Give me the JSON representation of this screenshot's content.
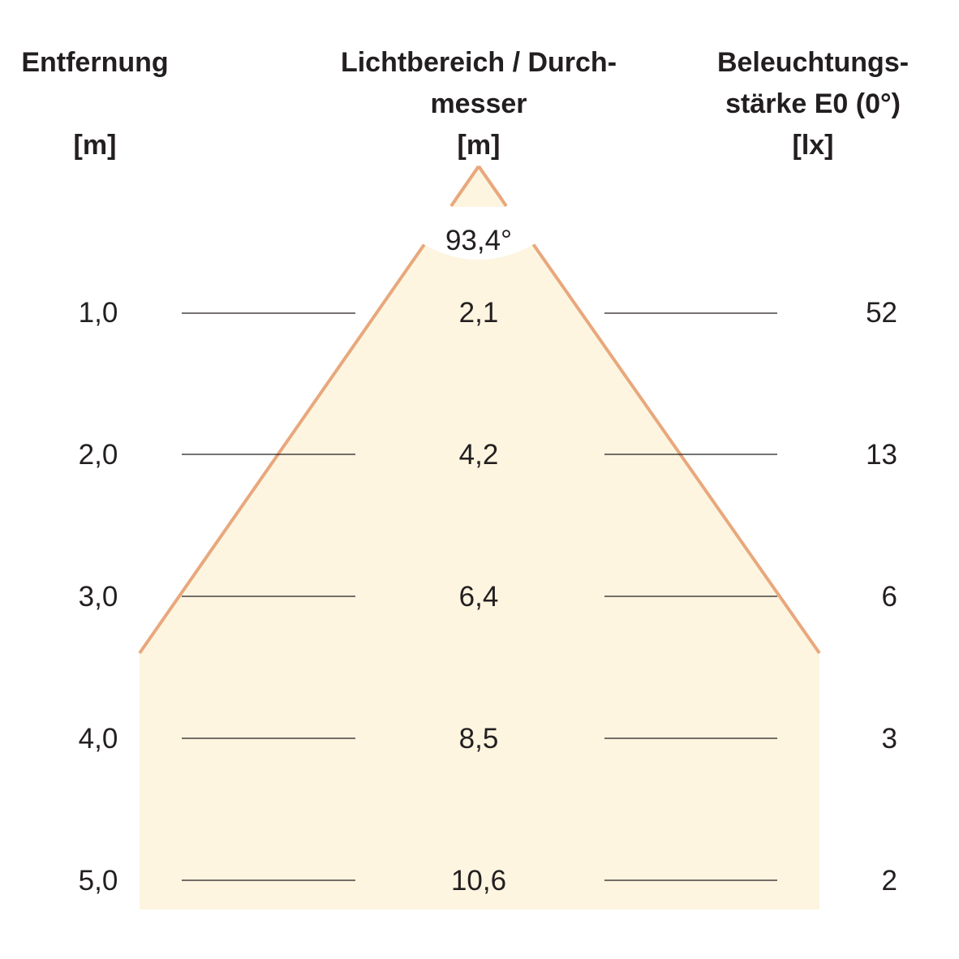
{
  "headers": {
    "distance": {
      "line1": "Entfernung",
      "unit": "[m]"
    },
    "diameter": {
      "line1": "Lichtbereich / Durch-",
      "line2": "messer",
      "unit": "[m]"
    },
    "illuminance": {
      "line1": "Beleuchtungs-",
      "line2": "stärke E0 (0°)",
      "unit": "[lx]"
    }
  },
  "beam_angle": "93,4°",
  "rows": [
    {
      "distance": "1,0",
      "diameter": "2,1",
      "illuminance": "52"
    },
    {
      "distance": "2,0",
      "diameter": "4,2",
      "illuminance": "13"
    },
    {
      "distance": "3,0",
      "diameter": "6,4",
      "illuminance": "6"
    },
    {
      "distance": "4,0",
      "diameter": "8,5",
      "illuminance": "3"
    },
    {
      "distance": "5,0",
      "diameter": "10,6",
      "illuminance": "2"
    }
  ],
  "colors": {
    "light_cone_fill": "#fdf5e0",
    "cone_edge": "#e8a87c",
    "text": "#231f20"
  }
}
